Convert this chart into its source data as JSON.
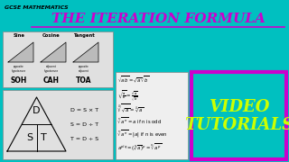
{
  "bg_color": "#00C0C0",
  "title_text": "THE ITERATION FORMULA",
  "title_color": "#CC00CC",
  "title_underline_color": "#CC00CC",
  "subtitle_text": "GCSE MATHEMATICS",
  "subtitle_color": "#000000",
  "video_box_border_color": "#CC00CC",
  "video_text_line1": "VIDEO",
  "video_text_line2": "TUTORIALS",
  "video_text_color": "#CCFF00",
  "trig_labels": [
    "Sine",
    "Cosine",
    "Tangent"
  ],
  "trig_sub": [
    "SOH",
    "CAH",
    "TOA"
  ],
  "trig_frac": [
    "opposite\nhypotenuse",
    "adjacent\nhypotenuse",
    "opposite\nadjacent"
  ],
  "triangle_formulas": [
    "D = S × T",
    "S = D ÷ T",
    "T = D ÷ S"
  ],
  "sqrt_lines": [
    "$\\sqrt{ab} = \\sqrt{a}\\sqrt{b}$",
    "$\\sqrt{\\frac{a}{b}} = \\frac{\\sqrt{a}}{\\sqrt{b}}$",
    "$\\sqrt[4]{\\sqrt{a}} = \\sqrt[4]{a}$",
    "$\\sqrt[n]{a^n} = a$ if n is odd",
    "$\\sqrt[n]{a^n} = |a|$ if n is even",
    "$a^{p/q} = (\\sqrt[q]{a})^p = \\sqrt[q]{a^p}$"
  ]
}
